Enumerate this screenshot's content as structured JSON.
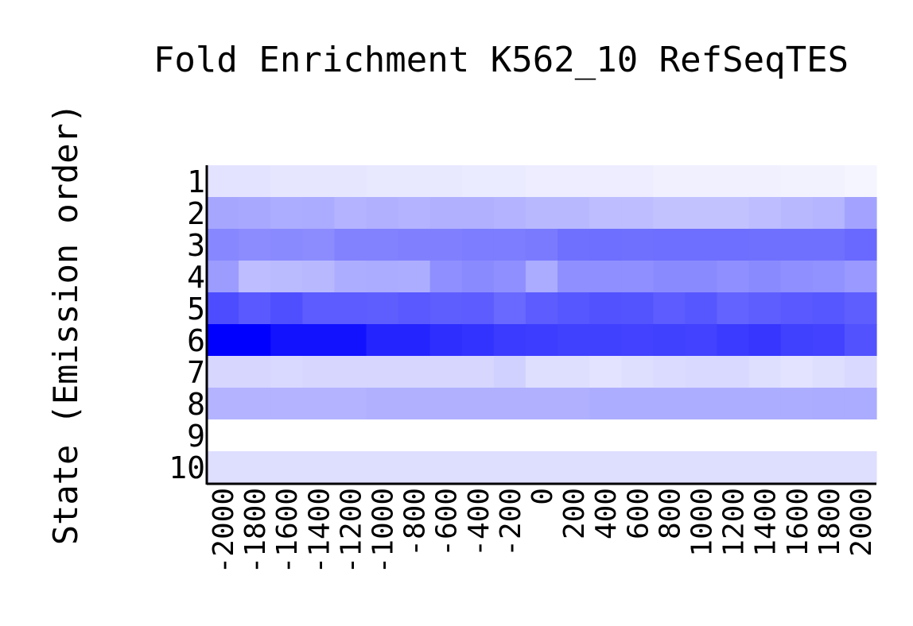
{
  "chart_data": {
    "type": "heatmap",
    "title": "Fold Enrichment K562_10 RefSeqTES",
    "ylabel": "State (Emission order)",
    "xlabel": "",
    "x_categories": [
      "-2000",
      "-1800",
      "-1600",
      "-1400",
      "-1200",
      "-1000",
      "-800",
      "-600",
      "-400",
      "-200",
      "0",
      "200",
      "400",
      "600",
      "800",
      "1000",
      "1200",
      "1400",
      "1600",
      "1800",
      "2000"
    ],
    "y_categories": [
      "1",
      "2",
      "3",
      "4",
      "5",
      "6",
      "7",
      "8",
      "9",
      "10"
    ],
    "value_scale": "relative intensity 0 (white) to 1 (pure blue)",
    "colors": {
      "low": "#ffffff",
      "high": "#0000ff",
      "axis": "#000000"
    },
    "values": [
      [
        0.11,
        0.11,
        0.1,
        0.1,
        0.1,
        0.09,
        0.09,
        0.09,
        0.08,
        0.08,
        0.07,
        0.07,
        0.07,
        0.07,
        0.06,
        0.06,
        0.06,
        0.06,
        0.05,
        0.05,
        0.04
      ],
      [
        0.35,
        0.34,
        0.32,
        0.33,
        0.3,
        0.31,
        0.3,
        0.31,
        0.31,
        0.3,
        0.28,
        0.28,
        0.26,
        0.26,
        0.24,
        0.24,
        0.24,
        0.26,
        0.28,
        0.29,
        0.36
      ],
      [
        0.47,
        0.45,
        0.46,
        0.45,
        0.49,
        0.49,
        0.5,
        0.5,
        0.51,
        0.51,
        0.52,
        0.56,
        0.57,
        0.56,
        0.57,
        0.57,
        0.57,
        0.56,
        0.56,
        0.56,
        0.59
      ],
      [
        0.39,
        0.26,
        0.27,
        0.28,
        0.32,
        0.33,
        0.32,
        0.44,
        0.46,
        0.44,
        0.33,
        0.44,
        0.44,
        0.44,
        0.46,
        0.46,
        0.44,
        0.46,
        0.44,
        0.43,
        0.4
      ],
      [
        0.7,
        0.65,
        0.69,
        0.64,
        0.64,
        0.63,
        0.65,
        0.63,
        0.64,
        0.59,
        0.64,
        0.66,
        0.68,
        0.67,
        0.64,
        0.66,
        0.61,
        0.63,
        0.65,
        0.66,
        0.63
      ],
      [
        1.0,
        1.0,
        0.93,
        0.93,
        0.93,
        0.86,
        0.86,
        0.82,
        0.8,
        0.77,
        0.76,
        0.75,
        0.75,
        0.74,
        0.75,
        0.74,
        0.77,
        0.79,
        0.75,
        0.74,
        0.68
      ],
      [
        0.16,
        0.16,
        0.15,
        0.16,
        0.16,
        0.16,
        0.16,
        0.16,
        0.16,
        0.18,
        0.13,
        0.13,
        0.11,
        0.13,
        0.14,
        0.15,
        0.15,
        0.13,
        0.11,
        0.13,
        0.15
      ],
      [
        0.3,
        0.3,
        0.3,
        0.3,
        0.3,
        0.31,
        0.31,
        0.31,
        0.31,
        0.31,
        0.31,
        0.31,
        0.32,
        0.32,
        0.32,
        0.32,
        0.32,
        0.32,
        0.32,
        0.33,
        0.33
      ],
      [
        0.0,
        0.0,
        0.0,
        0.0,
        0.0,
        0.0,
        0.0,
        0.0,
        0.0,
        0.0,
        0.0,
        0.0,
        0.0,
        0.0,
        0.0,
        0.0,
        0.0,
        0.0,
        0.0,
        0.0,
        0.0
      ],
      [
        0.13,
        0.13,
        0.13,
        0.13,
        0.13,
        0.13,
        0.13,
        0.13,
        0.13,
        0.13,
        0.13,
        0.13,
        0.13,
        0.13,
        0.13,
        0.13,
        0.13,
        0.13,
        0.13,
        0.13,
        0.13
      ]
    ]
  }
}
